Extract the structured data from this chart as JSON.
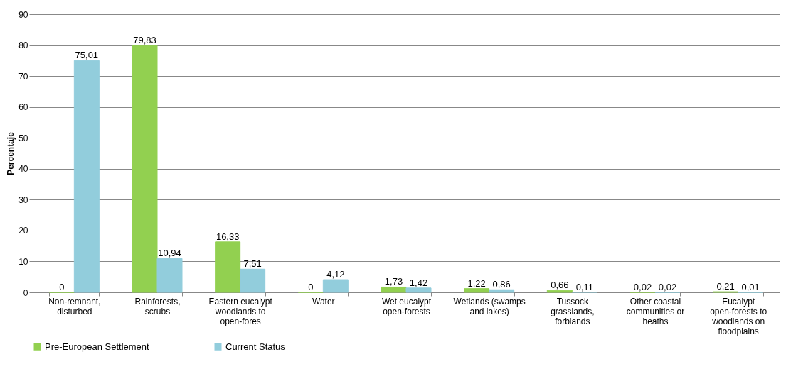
{
  "chart_data": {
    "type": "bar",
    "ylabel": "Percentaje",
    "categories": [
      "Non-remnant, disturbed",
      "Rainforests, scrubs",
      "Eastern eucalypt woodlands to open-fores",
      "Water",
      "Wet eucalypt open-forests",
      "Wetlands (swamps and lakes)",
      "Tussock grasslands, forblands",
      "Other coastal communities or heaths",
      "Eucalypt open-forests to woodlands on floodplains"
    ],
    "series": [
      {
        "name": "Pre-European Settlement",
        "color": "#92d050",
        "values": [
          0,
          79.83,
          16.33,
          0,
          1.73,
          1.22,
          0.66,
          0.02,
          0.21
        ],
        "value_labels": [
          "0",
          "79,83",
          "16,33",
          "0",
          "1,73",
          "1,22",
          "0,66",
          "0,02",
          "0,21"
        ]
      },
      {
        "name": "Current Status",
        "color": "#92cddc",
        "values": [
          75.01,
          10.94,
          7.51,
          4.12,
          1.42,
          0.86,
          0.11,
          0.02,
          0.01
        ],
        "value_labels": [
          "75,01",
          "10,94",
          "7,51",
          "4,12",
          "1,42",
          "0,86",
          "0,11",
          "0,02",
          "0,01"
        ]
      }
    ],
    "ylim": [
      0,
      90
    ],
    "yticks": [
      0,
      10,
      20,
      30,
      40,
      50,
      60,
      70,
      80,
      90
    ],
    "grid": "y",
    "legend": "bottom"
  }
}
